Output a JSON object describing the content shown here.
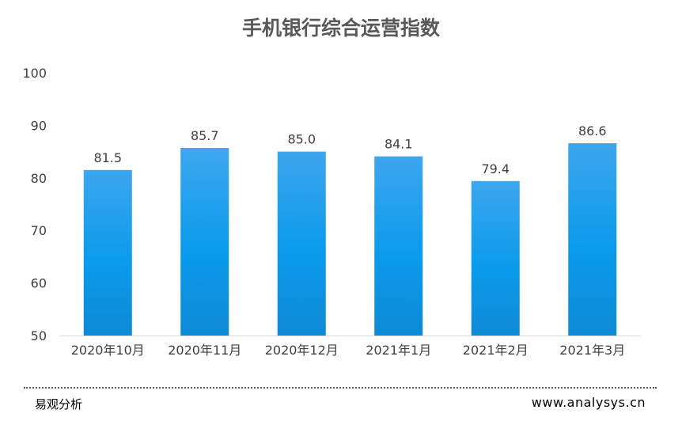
{
  "chart_data": {
    "type": "bar",
    "title": "手机银行综合运营指数",
    "categories": [
      "2020年10月",
      "2020年11月",
      "2020年12月",
      "2021年1月",
      "2021年2月",
      "2021年3月"
    ],
    "values": [
      81.5,
      85.7,
      85.0,
      84.1,
      79.4,
      86.6
    ],
    "value_labels": [
      "81.5",
      "85.7",
      "85.0",
      "84.1",
      "79.4",
      "86.6"
    ],
    "ylim": [
      50,
      100
    ],
    "yticks": [
      "50",
      "60",
      "70",
      "80",
      "90",
      "100"
    ],
    "xlabel": "",
    "ylabel": "",
    "grid": false,
    "colors": {
      "bar_top": "#3DA6EE",
      "bar_mid": "#0A9BEC",
      "bar_bottom": "#0E8AD6",
      "axis": "#D9D9D9"
    }
  },
  "footer": {
    "source": "易观分析",
    "website": "www.analysys.cn"
  }
}
